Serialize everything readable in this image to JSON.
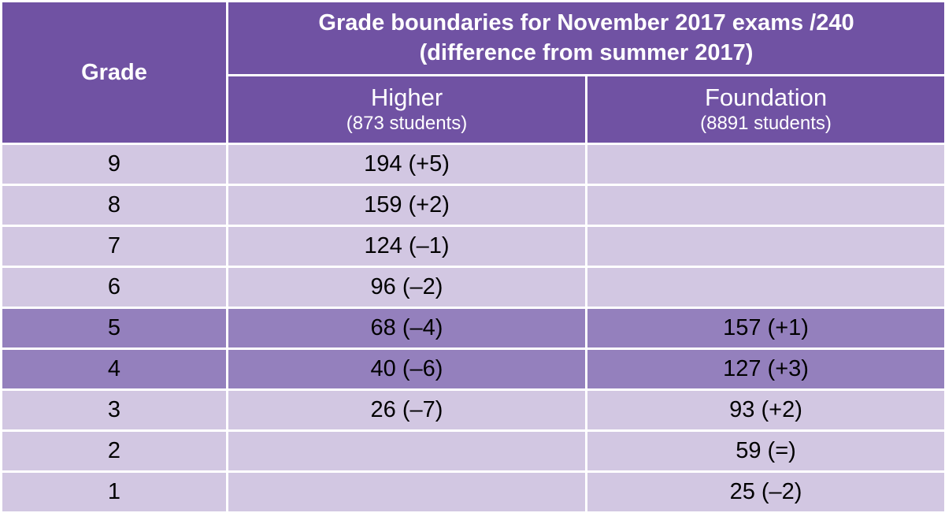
{
  "header": {
    "grade_label": "Grade",
    "title_line1": "Grade boundaries for November 2017 exams /240",
    "title_line2": "(difference from summer 2017)",
    "higher": {
      "name": "Higher",
      "count": "(873 students)"
    },
    "foundation": {
      "name": "Foundation",
      "count": "(8891 students)"
    }
  },
  "rows": [
    {
      "grade": "9",
      "higher": "194 (+5)",
      "foundation": "",
      "highlight": false
    },
    {
      "grade": "8",
      "higher": "159 (+2)",
      "foundation": "",
      "highlight": false
    },
    {
      "grade": "7",
      "higher": "124 (–1)",
      "foundation": "",
      "highlight": false
    },
    {
      "grade": "6",
      "higher": "96 (–2)",
      "foundation": "",
      "highlight": false
    },
    {
      "grade": "5",
      "higher": "68 (–4)",
      "foundation": "157 (+1)",
      "highlight": true
    },
    {
      "grade": "4",
      "higher": "40 (–6)",
      "foundation": "127 (+3)",
      "highlight": true
    },
    {
      "grade": "3",
      "higher": "26 (–7)",
      "foundation": "93 (+2)",
      "highlight": false
    },
    {
      "grade": "2",
      "higher": "",
      "foundation": "59 (=)",
      "highlight": false
    },
    {
      "grade": "1",
      "higher": "",
      "foundation": "25 (–2)",
      "highlight": false
    }
  ],
  "colors": {
    "header": "#7052a3",
    "row_light": "#d2c7e2",
    "row_highlight": "#9480bd"
  }
}
